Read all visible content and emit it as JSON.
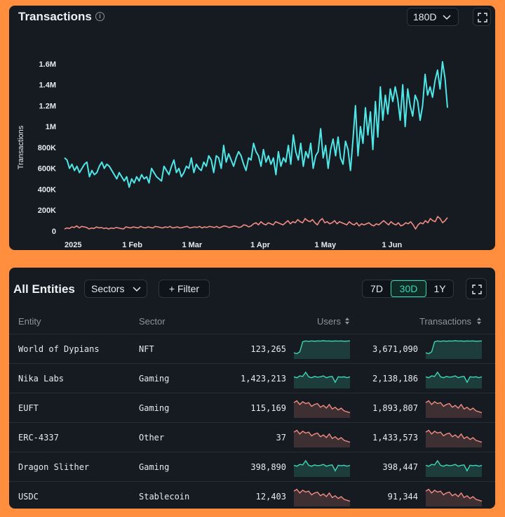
{
  "chart_panel": {
    "title": "Transactions",
    "range_select": "180D"
  },
  "chart_data": {
    "type": "line",
    "title": "Transactions",
    "ylabel": "Transactions",
    "y_ticks": [
      "0",
      "200K",
      "400K",
      "600K",
      "800K",
      "1M",
      "1.2M",
      "1.4M",
      "1.6M"
    ],
    "x_ticks": [
      "2025",
      "1 Feb",
      "1 Mar",
      "1 Apr",
      "1 May",
      "1 Jun"
    ],
    "ylim": [
      0,
      1700000
    ],
    "grid": false,
    "series": [
      {
        "color": "#4ee6e6",
        "values": [
          700000,
          680000,
          600000,
          640000,
          580000,
          620000,
          560000,
          600000,
          640000,
          660000,
          520000,
          580000,
          540000,
          560000,
          620000,
          660000,
          600000,
          640000,
          620000,
          580000,
          540000,
          500000,
          560000,
          520000,
          480000,
          520000,
          420000,
          500000,
          460000,
          520000,
          480000,
          540000,
          500000,
          520000,
          460000,
          600000,
          560000,
          520000,
          500000,
          480000,
          620000,
          580000,
          540000,
          620000,
          680000,
          560000,
          600000,
          520000,
          560000,
          620000,
          600000,
          700000,
          560000,
          640000,
          600000,
          580000,
          660000,
          620000,
          720000,
          680000,
          560000,
          720000,
          700000,
          600000,
          820000,
          660000,
          740000,
          680000,
          620000,
          700000,
          760000,
          720000,
          640000,
          580000,
          700000,
          680000,
          840000,
          760000,
          720000,
          620000,
          780000,
          660000,
          720000,
          640000,
          700000,
          540000,
          760000,
          620000,
          700000,
          660000,
          820000,
          640000,
          920000,
          760000,
          680000,
          840000,
          620000,
          760000,
          700000,
          840000,
          600000,
          720000,
          760000,
          980000,
          700000,
          820000,
          600000,
          780000,
          880000,
          720000,
          900000,
          700000,
          640000,
          860000,
          780000,
          580000,
          880000,
          1200000,
          720000,
          1000000,
          840000,
          1180000,
          920000,
          1140000,
          780000,
          1240000,
          900000,
          1380000,
          1060000,
          1300000,
          1120000,
          1360000,
          1240000,
          1380000,
          1260000,
          1060000,
          1400000,
          1000000,
          1360000,
          1200000,
          1100000,
          1300000,
          1240000,
          1060000,
          1200000,
          1500000,
          1300000,
          1380000,
          1280000,
          1440000,
          1540000,
          1360000,
          1620000,
          1460000,
          1180000
        ]
      },
      {
        "color": "#f28b82",
        "values": [
          20000,
          30000,
          25000,
          40000,
          35000,
          50000,
          30000,
          45000,
          40000,
          35000,
          20000,
          30000,
          25000,
          40000,
          30000,
          35000,
          25000,
          30000,
          20000,
          30000,
          25000,
          35000,
          30000,
          25000,
          20000,
          40000,
          35000,
          30000,
          40000,
          35000,
          30000,
          45000,
          35000,
          30000,
          40000,
          35000,
          30000,
          45000,
          40000,
          35000,
          30000,
          40000,
          35000,
          45000,
          30000,
          35000,
          40000,
          30000,
          35000,
          40000,
          45000,
          30000,
          35000,
          40000,
          35000,
          45000,
          30000,
          40000,
          35000,
          45000,
          40000,
          35000,
          45000,
          30000,
          40000,
          50000,
          45000,
          35000,
          40000,
          50000,
          45000,
          35000,
          40000,
          60000,
          55000,
          40000,
          50000,
          70000,
          80000,
          60000,
          90000,
          70000,
          60000,
          80000,
          70000,
          60000,
          90000,
          80000,
          70000,
          60000,
          80000,
          100000,
          70000,
          90000,
          80000,
          110000,
          90000,
          80000,
          120000,
          100000,
          90000,
          110000,
          80000,
          60000,
          100000,
          120000,
          80000,
          90000,
          70000,
          80000,
          100000,
          70000,
          90000,
          80000,
          70000,
          60000,
          90000,
          70000,
          60000,
          80000,
          50000,
          70000,
          60000,
          70000,
          80000,
          60000,
          50000,
          70000,
          60000,
          80000,
          100000,
          80000,
          60000,
          90000,
          70000,
          60000,
          80000,
          50000,
          60000,
          80000,
          70000,
          90000,
          60000,
          20000,
          60000,
          80000,
          70000,
          100000,
          80000,
          120000,
          100000,
          90000,
          140000,
          120000,
          80000,
          100000,
          130000
        ]
      }
    ]
  },
  "table_panel": {
    "title": "All Entities",
    "sectors_button": "Sectors",
    "filter_button": "+ Filter",
    "ranges": [
      "7D",
      "30D",
      "1Y"
    ],
    "active_range": "30D",
    "columns": {
      "entity": "Entity",
      "sector": "Sector",
      "users": "Users",
      "transactions": "Transactions"
    },
    "rows": [
      {
        "entity": "World of Dypians",
        "sector": "NFT",
        "users": "123,265",
        "transactions": "3,671,090",
        "trend": "up",
        "color": "#3dd6b5"
      },
      {
        "entity": "Nika Labs",
        "sector": "Gaming",
        "users": "1,423,213",
        "transactions": "2,138,186",
        "trend": "flat",
        "color": "#3dd6b5"
      },
      {
        "entity": "EUFT",
        "sector": "Gaming",
        "users": "115,169",
        "transactions": "1,893,807",
        "trend": "down",
        "color": "#f28b82"
      },
      {
        "entity": "ERC-4337",
        "sector": "Other",
        "users": "37",
        "transactions": "1,433,573",
        "trend": "down",
        "color": "#f28b82"
      },
      {
        "entity": "Dragon Slither",
        "sector": "Gaming",
        "users": "398,890",
        "transactions": "398,447",
        "trend": "flat",
        "color": "#3dd6b5"
      },
      {
        "entity": "USDC",
        "sector": "Stablecoin",
        "users": "12,403",
        "transactions": "91,344",
        "trend": "down",
        "color": "#f28b82"
      }
    ]
  }
}
